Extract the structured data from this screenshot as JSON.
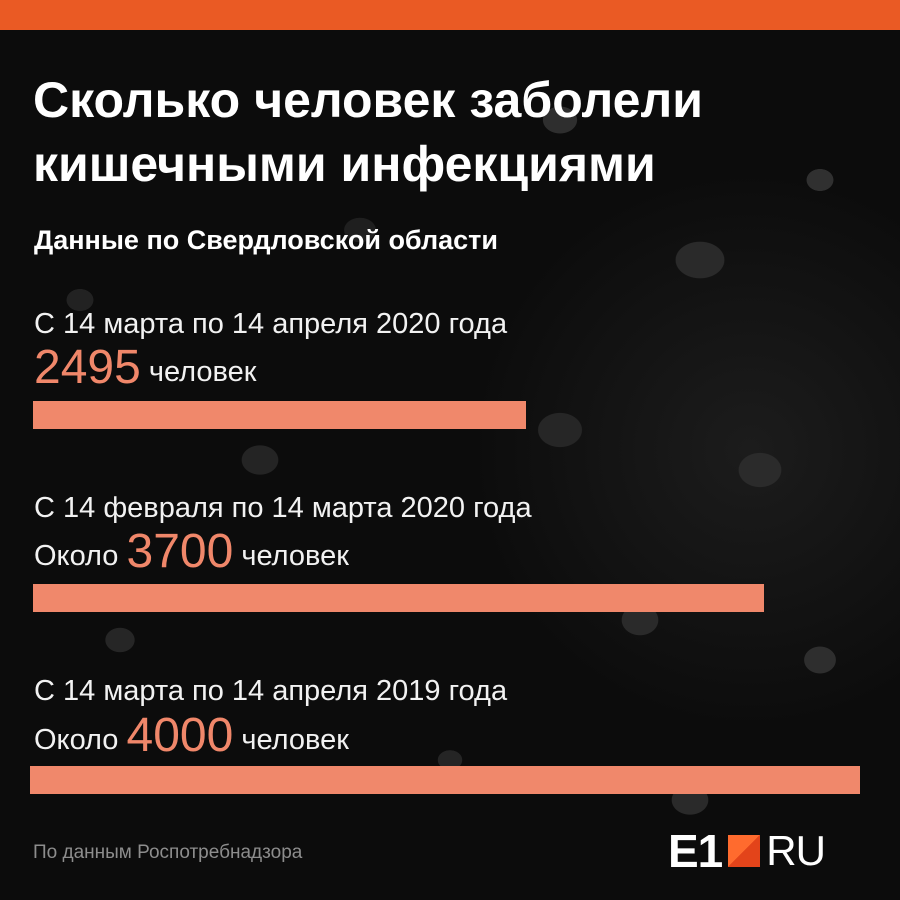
{
  "header": {
    "title_line1": "Сколько человек заболели",
    "title_line2": "кишечными инфекциями",
    "subtitle": "Данные по Свердловской области",
    "accent_color": "#ea5a24"
  },
  "items": [
    {
      "period": "С 14 марта по 14 апреля 2020 года",
      "prefix": "",
      "value": "2495",
      "unit": "человек"
    },
    {
      "period": "С 14 февраля по 14 марта 2020 года",
      "prefix": "Около",
      "value": "3700",
      "unit": "человек"
    },
    {
      "period": "С 14 марта по 14 апреля 2019 года",
      "prefix": "Около",
      "value": "4000",
      "unit": "человек"
    }
  ],
  "chart_data": {
    "type": "bar",
    "orientation": "horizontal",
    "categories": [
      "С 14 марта по 14 апреля 2020 года",
      "С 14 февраля по 14 марта 2020 года",
      "С 14 марта по 14 апреля 2019 года"
    ],
    "values": [
      2495,
      3700,
      4000
    ],
    "title": "Сколько человек заболели кишечными инфекциями",
    "subtitle": "Данные по Свердловской области",
    "bar_color": "#f0886b",
    "value_color": "#f0876a"
  },
  "footer": {
    "source": "По данным Роспотребнадзора",
    "logo_e1": "E1",
    "logo_ru": "RU"
  }
}
